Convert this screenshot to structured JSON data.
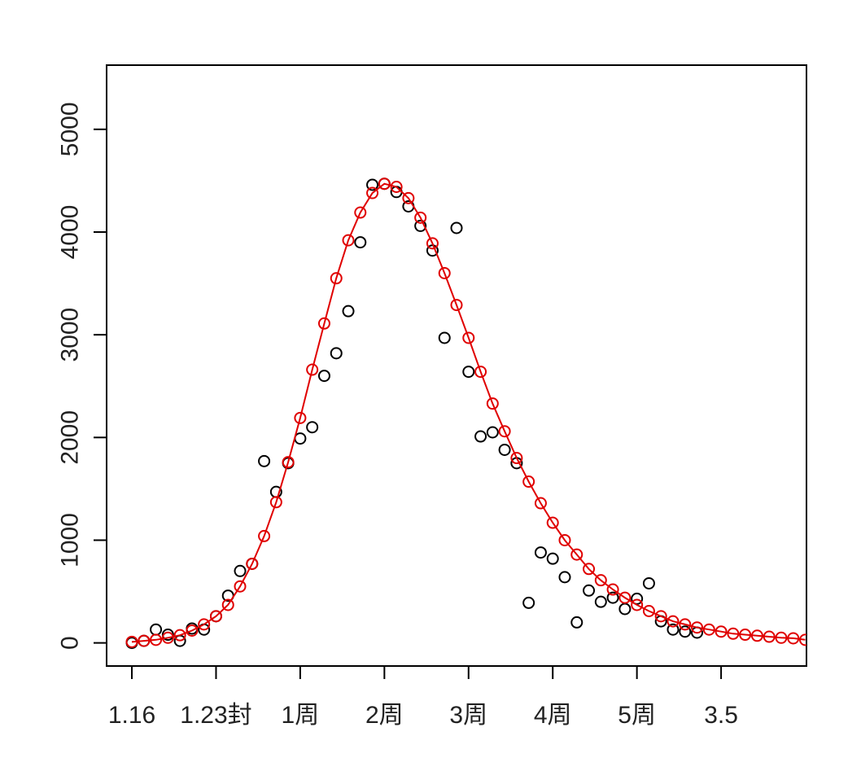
{
  "chart_data": {
    "type": "scatter",
    "title": "",
    "xlabel": "",
    "ylabel": "",
    "x_ticks": [
      {
        "day": 0,
        "label": "1.16"
      },
      {
        "day": 7,
        "label": "1.23封"
      },
      {
        "day": 14,
        "label": "1周"
      },
      {
        "day": 21,
        "label": "2周"
      },
      {
        "day": 28,
        "label": "3周"
      },
      {
        "day": 35,
        "label": "4周"
      },
      {
        "day": 42,
        "label": "5周"
      },
      {
        "day": 49,
        "label": "3.5"
      }
    ],
    "y_ticks": [
      0,
      1000,
      2000,
      3000,
      4000,
      5000
    ],
    "xlim": [
      -2.1,
      56.1
    ],
    "ylim": [
      -225,
      5625
    ],
    "grid": false,
    "legend": "none",
    "series": [
      {
        "color": "#000000",
        "style": "points",
        "x": [
          0,
          1,
          2,
          3,
          4,
          5,
          6,
          7,
          8,
          9,
          10,
          11,
          12,
          13,
          14,
          15,
          16,
          17,
          18,
          19,
          20,
          21,
          22,
          23,
          24,
          25,
          26,
          27,
          28,
          29,
          30,
          31,
          32,
          33,
          34,
          35,
          36,
          37,
          38,
          39,
          40,
          41,
          42,
          43,
          44,
          45,
          46,
          47
        ],
        "y": [
          0,
          20,
          130,
          80,
          20,
          140,
          130,
          260,
          460,
          700,
          770,
          1770,
          1470,
          1750,
          1990,
          2100,
          2600,
          2820,
          3230,
          3900,
          4460,
          4470,
          4390,
          4250,
          4060,
          3820,
          2970,
          4040,
          2640,
          2010,
          2050,
          1880,
          1750,
          390,
          880,
          820,
          640,
          200,
          510,
          400,
          440,
          330,
          430,
          580,
          210,
          130,
          110,
          100
        ]
      },
      {
        "color": "#e00000",
        "style": "line+points",
        "x": [
          0,
          1,
          2,
          3,
          4,
          5,
          6,
          7,
          8,
          9,
          10,
          11,
          12,
          13,
          14,
          15,
          16,
          17,
          18,
          19,
          20,
          21,
          22,
          23,
          24,
          25,
          26,
          27,
          28,
          29,
          30,
          31,
          32,
          33,
          34,
          35,
          36,
          37,
          38,
          39,
          40,
          41,
          42,
          43,
          44,
          45,
          46,
          47,
          48,
          49,
          50,
          51,
          52,
          53,
          54,
          55,
          56
        ],
        "y": [
          10,
          20,
          30,
          50,
          75,
          120,
          180,
          260,
          370,
          550,
          770,
          1040,
          1370,
          1760,
          2190,
          2660,
          3110,
          3550,
          3920,
          4190,
          4380,
          4470,
          4440,
          4330,
          4140,
          3890,
          3600,
          3290,
          2970,
          2640,
          2330,
          2060,
          1800,
          1570,
          1360,
          1170,
          1000,
          860,
          720,
          610,
          520,
          440,
          370,
          310,
          260,
          210,
          180,
          150,
          130,
          110,
          90,
          80,
          70,
          60,
          50,
          45,
          30
        ]
      }
    ]
  }
}
